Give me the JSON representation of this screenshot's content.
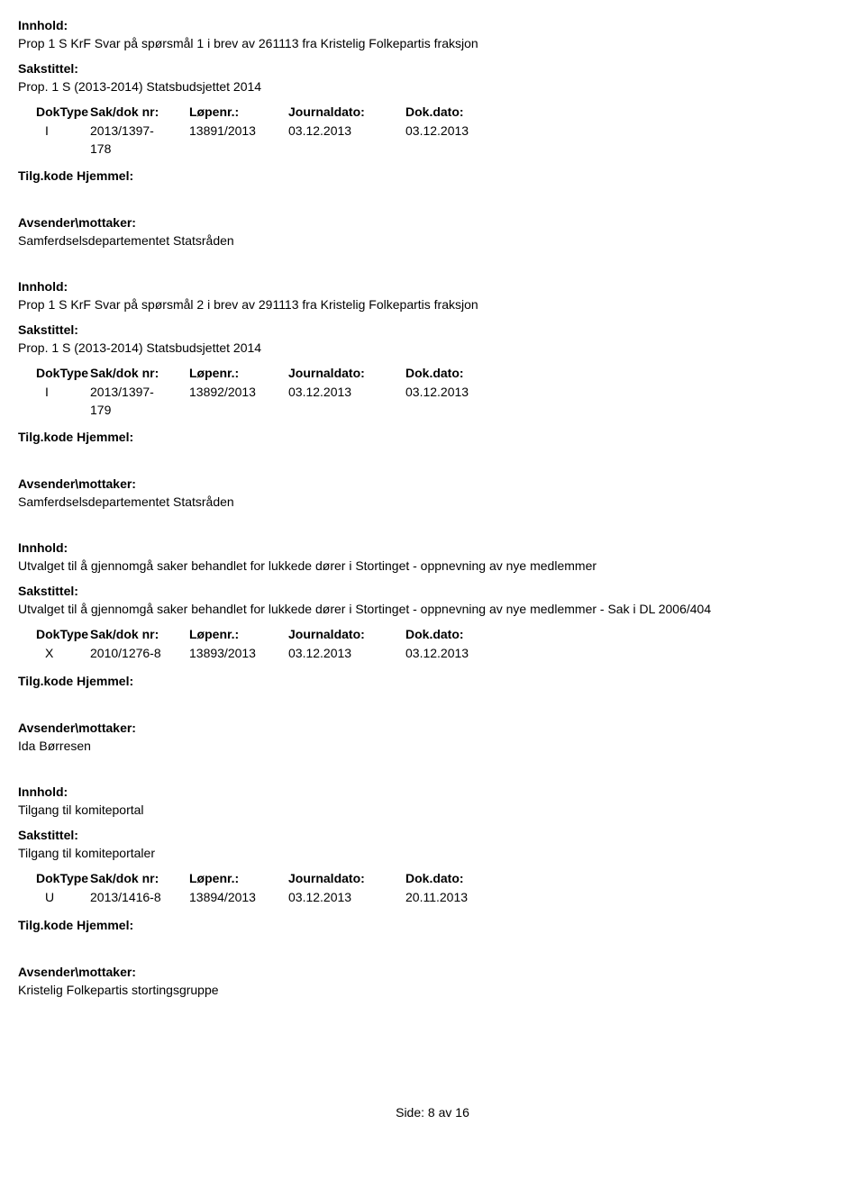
{
  "labels": {
    "innhold": "Innhold:",
    "sakstittel": "Sakstittel:",
    "doktype": "DokType",
    "sakdoknr": "Sak/dok nr:",
    "lopenr": "Løpenr.:",
    "journaldato": "Journaldato:",
    "dokdato": "Dok.dato:",
    "tilgkode": "Tilg.kode",
    "hjemmel": "Hjemmel:",
    "avsender": "Avsender\\mottaker:"
  },
  "records": [
    {
      "innhold": "Prop 1 S KrF Svar på spørsmål 1 i brev av 261113 fra Kristelig Folkepartis fraksjon",
      "sakstittel": "Prop. 1 S (2013-2014) Statsbudsjettet 2014",
      "doktype": "I",
      "sakdoknr": "2013/1397-178",
      "lopenr": "13891/2013",
      "journaldato": "03.12.2013",
      "dokdato": "03.12.2013",
      "avsender": "Samferdselsdepartementet Statsråden"
    },
    {
      "innhold": "Prop 1 S KrF Svar på spørsmål 2 i brev av 291113 fra Kristelig Folkepartis fraksjon",
      "sakstittel": "Prop. 1 S (2013-2014) Statsbudsjettet 2014",
      "doktype": "I",
      "sakdoknr": "2013/1397-179",
      "lopenr": "13892/2013",
      "journaldato": "03.12.2013",
      "dokdato": "03.12.2013",
      "avsender": "Samferdselsdepartementet Statsråden"
    },
    {
      "innhold": "Utvalget til å gjennomgå saker behandlet for lukkede dører i Stortinget - oppnevning av nye medlemmer",
      "sakstittel": "Utvalget til å gjennomgå saker behandlet for lukkede dører i Stortinget - oppnevning av nye medlemmer  - Sak i DL 2006/404",
      "doktype": "X",
      "sakdoknr": "2010/1276-8",
      "lopenr": "13893/2013",
      "journaldato": "03.12.2013",
      "dokdato": "03.12.2013",
      "avsender": "Ida Børresen"
    },
    {
      "innhold": "Tilgang til komiteportal",
      "sakstittel": "Tilgang til komiteportaler",
      "doktype": "U",
      "sakdoknr": "2013/1416-8",
      "lopenr": "13894/2013",
      "journaldato": "03.12.2013",
      "dokdato": "20.11.2013",
      "avsender": "Kristelig Folkepartis stortingsgruppe"
    }
  ],
  "footer": {
    "side_label": "Side:",
    "page": "8",
    "av": "av",
    "total": "16"
  }
}
